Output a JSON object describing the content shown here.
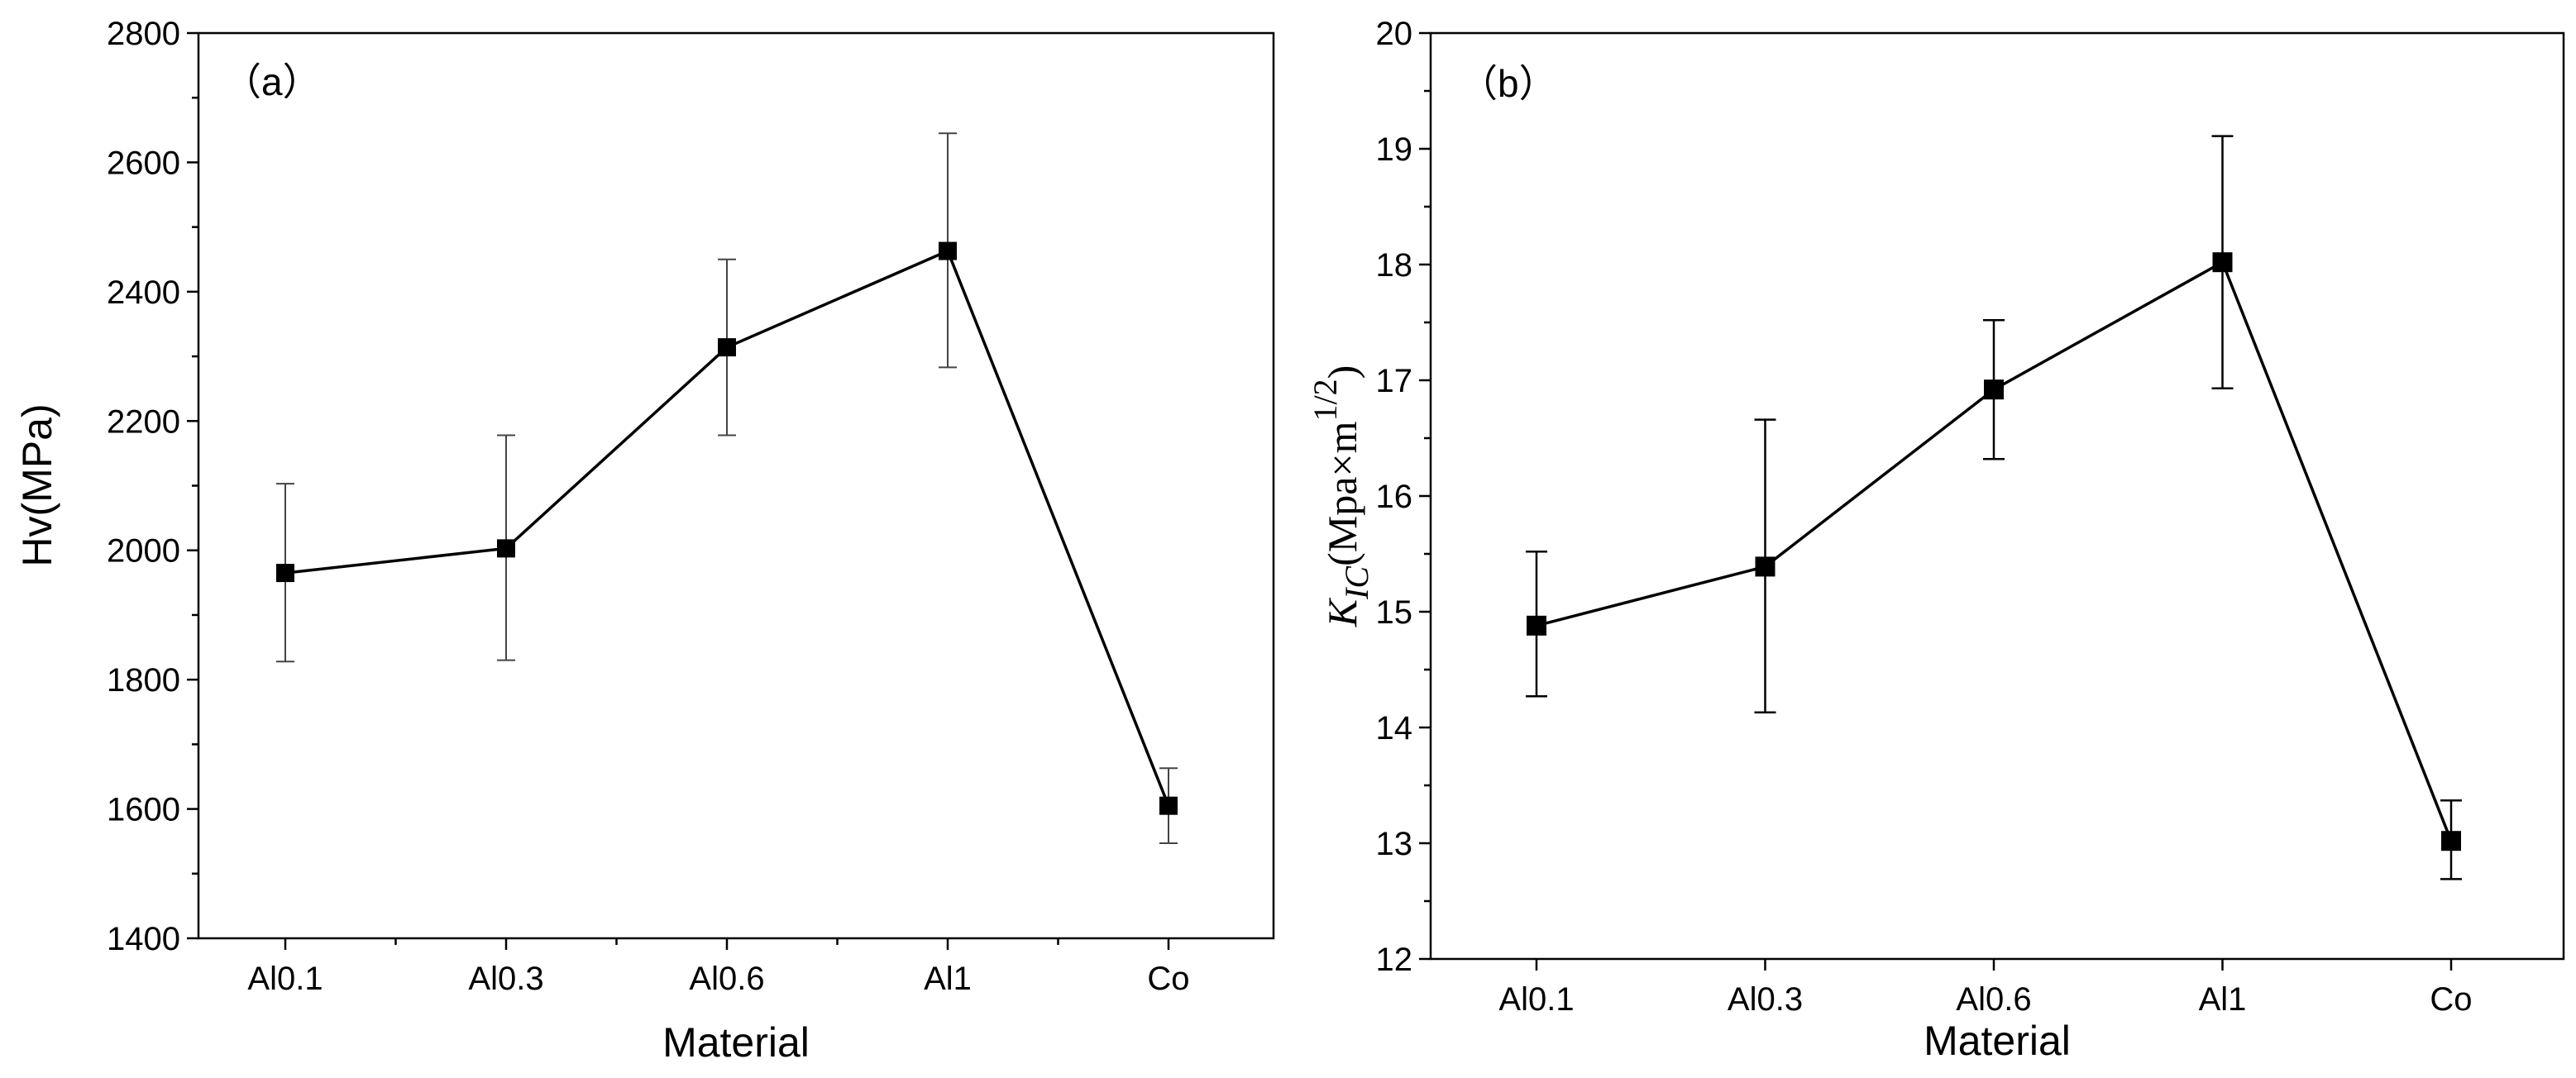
{
  "chart_data": [
    {
      "type": "line",
      "panel_label": "（a）",
      "title": "",
      "xlabel": "Material",
      "ylabel": "Hv(MPa)",
      "categories": [
        "Al0.1",
        "Al0.3",
        "Al0.6",
        "Al1",
        "Co"
      ],
      "ylim": [
        1400,
        2800
      ],
      "yticks": [
        1400,
        1600,
        1800,
        2000,
        2200,
        2400,
        2600,
        2800
      ],
      "series": [
        {
          "name": "Hv",
          "values": [
            1965,
            2003,
            2314,
            2463,
            1605
          ],
          "err_low": [
            1828,
            1830,
            2178,
            2283,
            1547
          ],
          "err_high": [
            2103,
            2178,
            2450,
            2645,
            1663
          ]
        }
      ]
    },
    {
      "type": "line",
      "panel_label": "（b）",
      "title": "",
      "xlabel": "Material",
      "ylabel": {
        "symbol": "K",
        "subscript": "IC",
        "units": "(Mpa×m",
        "superscript": "1/2",
        "close": ")"
      },
      "categories": [
        "Al0.1",
        "Al0.3",
        "Al0.6",
        "Al1",
        "Co"
      ],
      "ylim": [
        12,
        20
      ],
      "yticks": [
        12,
        13,
        14,
        15,
        16,
        17,
        18,
        19,
        20
      ],
      "series": [
        {
          "name": "KIC",
          "values": [
            14.88,
            15.39,
            16.92,
            18.02,
            13.02
          ],
          "err_low": [
            14.27,
            14.13,
            16.32,
            16.93,
            12.69
          ],
          "err_high": [
            15.52,
            16.66,
            17.52,
            19.11,
            13.37
          ]
        }
      ]
    }
  ]
}
